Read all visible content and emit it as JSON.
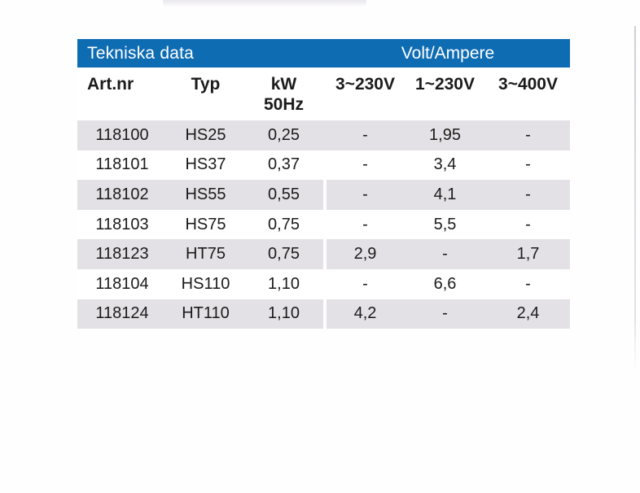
{
  "table": {
    "title_bar": {
      "left_label": "Tekniska data",
      "right_label": "Volt/Ampere"
    },
    "columns": [
      {
        "label": "Art.nr"
      },
      {
        "label": "Typ"
      },
      {
        "label": "kW",
        "label2": "50Hz"
      },
      {
        "label": "3~230V"
      },
      {
        "label": "1~230V"
      },
      {
        "label": "3~400V"
      }
    ],
    "rows": [
      {
        "artnr": "118100",
        "typ": "HS25",
        "kw": "0,25",
        "v3_230": "-",
        "v1_230": "1,95",
        "v3_400": "-",
        "shaded": true,
        "split_gap": false
      },
      {
        "artnr": "118101",
        "typ": "HS37",
        "kw": "0,37",
        "v3_230": "-",
        "v1_230": "3,4",
        "v3_400": "-",
        "shaded": false,
        "split_gap": false
      },
      {
        "artnr": "118102",
        "typ": "HS55",
        "kw": "0,55",
        "v3_230": "-",
        "v1_230": "4,1",
        "v3_400": "-",
        "shaded": true,
        "split_gap": true
      },
      {
        "artnr": "118103",
        "typ": "HS75",
        "kw": "0,75",
        "v3_230": "-",
        "v1_230": "5,5",
        "v3_400": "-",
        "shaded": false,
        "split_gap": false
      },
      {
        "artnr": "118123",
        "typ": "HT75",
        "kw": "0,75",
        "v3_230": "2,9",
        "v1_230": "-",
        "v3_400": "1,7",
        "shaded": true,
        "split_gap": true
      },
      {
        "artnr": "118104",
        "typ": "HS110",
        "kw": "1,10",
        "v3_230": "-",
        "v1_230": "6,6",
        "v3_400": "-",
        "shaded": false,
        "split_gap": false
      },
      {
        "artnr": "118124",
        "typ": "HT110",
        "kw": "1,10",
        "v3_230": "4,2",
        "v1_230": "-",
        "v3_400": "2,4",
        "shaded": true,
        "split_gap": true
      }
    ],
    "colors": {
      "header_bg": "#0e6cb3",
      "header_fg": "#ffffff",
      "row_shaded": "#e3e1e5",
      "row_plain": "#ffffff",
      "text": "#1b1b1b"
    }
  }
}
